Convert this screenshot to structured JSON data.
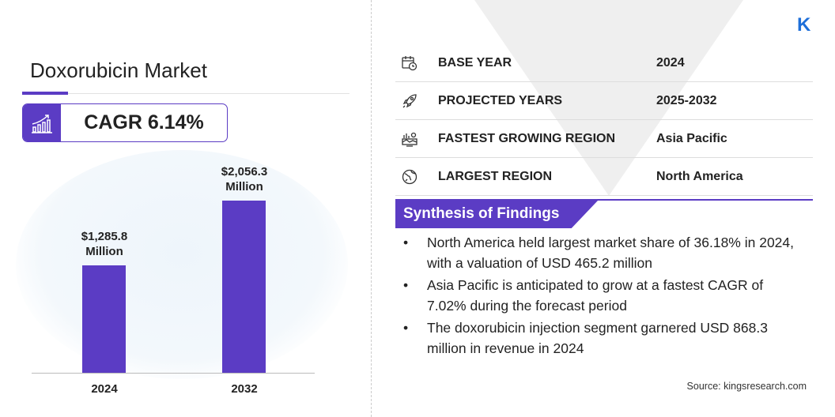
{
  "title": "Doxorubicin Market",
  "cagr": "CAGR 6.14%",
  "colors": {
    "accent": "#5b3cc4",
    "logo": "#1e6fd9"
  },
  "chart_data": {
    "type": "bar",
    "categories": [
      "2024",
      "2032"
    ],
    "values": [
      1285.8,
      2056.3
    ],
    "data_labels": [
      [
        "$1,285.8",
        "Million"
      ],
      [
        "$2,056.3",
        "Million"
      ]
    ],
    "title": "",
    "xlabel": "",
    "ylabel": ""
  },
  "stats": [
    {
      "icon": "calendar-clock-icon",
      "label": "BASE YEAR",
      "value": "2024"
    },
    {
      "icon": "rocket-icon",
      "label": "PROJECTED YEARS",
      "value": "2025-2032"
    },
    {
      "icon": "region-growth-icon",
      "label": "FASTEST GROWING REGION",
      "value": "Asia Pacific"
    },
    {
      "icon": "globe-icon",
      "label": "LARGEST REGION",
      "value": "North America"
    }
  ],
  "synthesis": {
    "heading": "Synthesis of Findings",
    "items": [
      "North America held largest market share of 36.18% in 2024, with a valuation of USD 465.2 million",
      "Asia Pacific is anticipated to grow at a fastest CAGR of 7.02% during the forecast period",
      "The doxorubicin injection segment garnered USD 868.3 million in revenue in 2024"
    ]
  },
  "source": "Source:  kingsresearch.com",
  "logo": "K"
}
